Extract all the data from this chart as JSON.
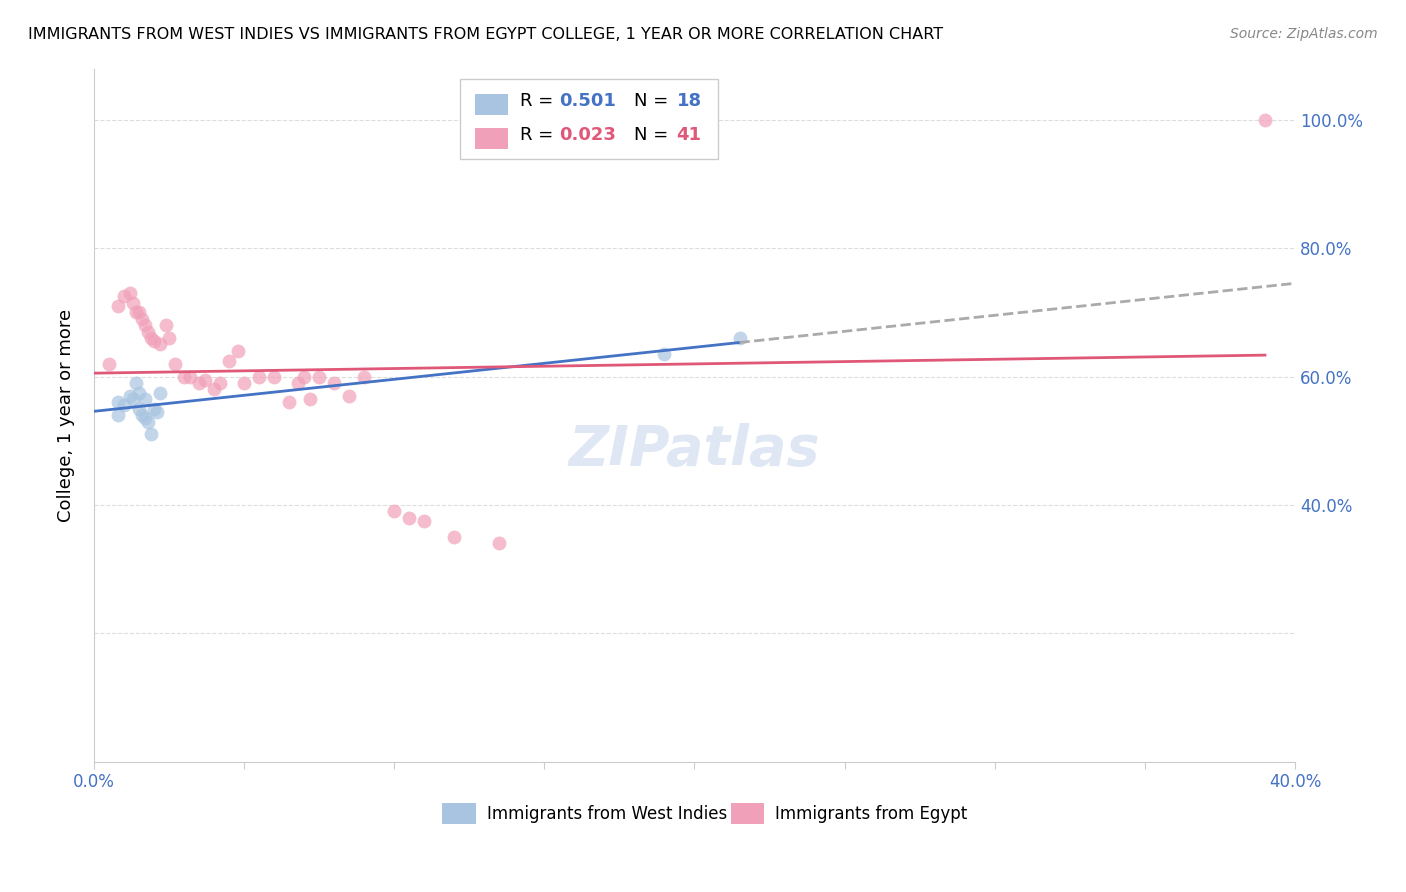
{
  "title": "IMMIGRANTS FROM WEST INDIES VS IMMIGRANTS FROM EGYPT COLLEGE, 1 YEAR OR MORE CORRELATION CHART",
  "source": "Source: ZipAtlas.com",
  "ylabel": "College, 1 year or more",
  "legend_blue_r": "0.501",
  "legend_blue_n": "18",
  "legend_pink_r": "0.023",
  "legend_pink_n": "41",
  "blue_color": "#A8C4E0",
  "pink_color": "#F0A0B8",
  "blue_line_color": "#4472C4",
  "pink_line_color": "#E05878",
  "dash_line_color": "#AAAAAA",
  "west_indies_x": [
    0.008,
    0.008,
    0.01,
    0.012,
    0.013,
    0.014,
    0.015,
    0.015,
    0.016,
    0.017,
    0.017,
    0.018,
    0.019,
    0.02,
    0.021,
    0.022,
    0.19,
    0.215
  ],
  "west_indies_y": [
    0.54,
    0.56,
    0.555,
    0.57,
    0.565,
    0.59,
    0.575,
    0.55,
    0.54,
    0.535,
    0.565,
    0.53,
    0.51,
    0.55,
    0.545,
    0.575,
    0.635,
    0.66
  ],
  "egypt_x": [
    0.005,
    0.008,
    0.01,
    0.012,
    0.013,
    0.014,
    0.015,
    0.016,
    0.017,
    0.018,
    0.019,
    0.02,
    0.022,
    0.024,
    0.025,
    0.027,
    0.03,
    0.032,
    0.035,
    0.037,
    0.04,
    0.042,
    0.045,
    0.048,
    0.05,
    0.055,
    0.06,
    0.065,
    0.068,
    0.07,
    0.072,
    0.075,
    0.08,
    0.085,
    0.09,
    0.1,
    0.105,
    0.11,
    0.12,
    0.135,
    0.39
  ],
  "egypt_y": [
    0.62,
    0.71,
    0.725,
    0.73,
    0.715,
    0.7,
    0.7,
    0.69,
    0.68,
    0.67,
    0.66,
    0.655,
    0.65,
    0.68,
    0.66,
    0.62,
    0.6,
    0.6,
    0.59,
    0.595,
    0.58,
    0.59,
    0.625,
    0.64,
    0.59,
    0.6,
    0.6,
    0.56,
    0.59,
    0.6,
    0.565,
    0.6,
    0.59,
    0.57,
    0.6,
    0.39,
    0.38,
    0.375,
    0.35,
    0.34,
    1.0
  ],
  "xlim": [
    0.0,
    0.4
  ],
  "ylim": [
    0.0,
    1.08
  ],
  "right_yticks": [
    0.4,
    0.6,
    0.8,
    1.0
  ],
  "right_yticklabels": [
    "40.0%",
    "60.0%",
    "80.0%",
    "100.0%"
  ],
  "grid_yticks": [
    0.2,
    0.4,
    0.6,
    0.8,
    1.0
  ],
  "background_color": "#FFFFFF",
  "watermark": "ZIPatlas",
  "marker_size": 100
}
